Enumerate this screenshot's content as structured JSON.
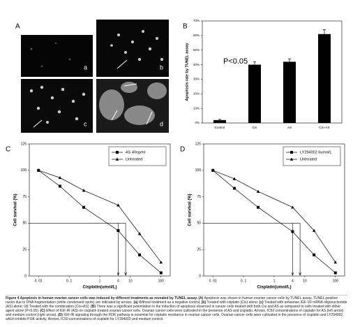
{
  "panel_labels": [
    "A",
    "B",
    "C",
    "D"
  ],
  "image_labels": [
    "a",
    "b",
    "c",
    "d"
  ],
  "chart_data": [
    {
      "type": "bar",
      "ylabel": "Apoptosis rate by TUNEL assay",
      "annotation": "P<0.05",
      "categories": [
        "Control",
        "Cis",
        "AS",
        "Cis+AS"
      ],
      "values": [
        2,
        40,
        42,
        61
      ],
      "errors": [
        0.5,
        2,
        2,
        3
      ],
      "color": "#000000",
      "ylim": [
        0,
        70
      ],
      "yticks": [
        {
          "value": 0,
          "label": "0%"
        },
        {
          "value": 10,
          "label": "10%"
        },
        {
          "value": 20,
          "label": "20%"
        },
        {
          "value": 30,
          "label": "30%"
        },
        {
          "value": 40,
          "label": "40%"
        },
        {
          "value": 50,
          "label": "50%"
        },
        {
          "value": 60,
          "label": "60%"
        },
        {
          "value": 70,
          "label": "70%"
        }
      ]
    },
    {
      "type": "line",
      "xlabel": "Cisplatin(umol/L)",
      "ylabel": "Cell survival (%)",
      "xscale": "log",
      "legend": "upper right",
      "x": [
        0.01,
        0.05,
        0.3,
        4,
        20,
        100
      ],
      "xlim": [
        0.005,
        200
      ],
      "xticks": [
        {
          "value": 0.01,
          "label": "0. 01"
        },
        {
          "value": 0.1,
          "label": "0. 1"
        },
        1,
        10,
        100
      ],
      "ylim": [
        0,
        125
      ],
      "yticks": [
        0,
        25,
        50,
        75,
        100,
        125
      ],
      "series": [
        {
          "name": "AS 40ng/ml",
          "color": "#000000",
          "marker": "square",
          "values": [
            100,
            85,
            65,
            43,
            20,
            3
          ]
        },
        {
          "name": "Untreated",
          "color": "#000000",
          "marker": "triangle",
          "values": [
            100,
            93,
            81,
            67,
            40,
            13
          ]
        }
      ],
      "reference_y": 50,
      "arrows": [
        {
          "x": 4,
          "labeled": true
        },
        {
          "x": 7,
          "labeled": false
        }
      ]
    },
    {
      "type": "line",
      "xlabel": "Cisplatin(umol/L)",
      "ylabel": "Cell survival (%)",
      "xscale": "log",
      "legend": "upper right",
      "x": [
        0.01,
        0.05,
        0.3,
        4,
        20,
        100
      ],
      "xlim": [
        0.005,
        200
      ],
      "xticks": [
        {
          "value": 0.01,
          "label": "0. 01"
        },
        {
          "value": 0.1,
          "label": "0. 1"
        },
        1,
        10,
        100
      ],
      "ylim": [
        0,
        125
      ],
      "yticks": [
        0,
        25,
        50,
        75,
        100,
        125
      ],
      "series": [
        {
          "name": "LY294002 6umol/L",
          "color": "#000000",
          "marker": "square",
          "values": [
            100,
            83,
            65,
            42,
            20,
            3
          ]
        },
        {
          "name": "Untreated",
          "color": "#000000",
          "marker": "triangle",
          "values": [
            100,
            92,
            80,
            65,
            43,
            13
          ]
        }
      ],
      "reference_y": 50,
      "arrows": [
        {
          "x": 4,
          "labeled": true
        },
        {
          "x": 7,
          "labeled": false
        }
      ]
    }
  ],
  "caption": [
    {
      "text": "Figure 4 Apoptosis in human ovarian cancer cells was induced by different treatments as revealed by TUNEL assay. (A)",
      "bold": true
    },
    {
      "text": " Apoptosis was shown in human ovarian cancer cells by TUNEL assay. TUNEL-positive nuclei due to DNA fragmentation (white condensed spots) are indicated by arrows. ",
      "bold": false
    },
    {
      "text": "(a)",
      "bold": true
    },
    {
      "text": " Without treatment as a negative control; ",
      "bold": false
    },
    {
      "text": "(b)",
      "bold": true
    },
    {
      "text": " Treated with cisplatin (Cis) alone; ",
      "bold": false
    },
    {
      "text": "(c)",
      "bold": true
    },
    {
      "text": " Treated with antisense IGF-1R mRNA oligonucleotide (AS) alone; (d) Treated with the combination (Cis+AS). ",
      "bold": false
    },
    {
      "text": "(B)",
      "bold": true
    },
    {
      "text": " There was a significant potentiation in the induction of apoptosis observed in cancer cells treated with both Cis and AS as compared to cells treated with either agent alone (P<0.05). ",
      "bold": false
    },
    {
      "text": "(C)",
      "bold": true
    },
    {
      "text": " Effect of IGF-IR (AS) on cisplatin treated ovarian cancer cells. Ovarian cancer cells were cultivated in the presence of AS and cisplatin. Arrows, IC50 concentrations of cisplatin for AS (left arrow) and medium control (right arrow). ",
      "bold": false
    },
    {
      "text": "(D)",
      "bold": true
    },
    {
      "text": " IGF-IR signaling through the PI3K pathway is essential for cisplatin resistance in ovarian cancer cells. Ovarian cancer cells were cultivated in the presence of cisplatin and LY294002, which inhibits PI3K activity. Arrows, IC50 concentrations of cisplatin for LY294002 and medium control.",
      "bold": false
    }
  ]
}
